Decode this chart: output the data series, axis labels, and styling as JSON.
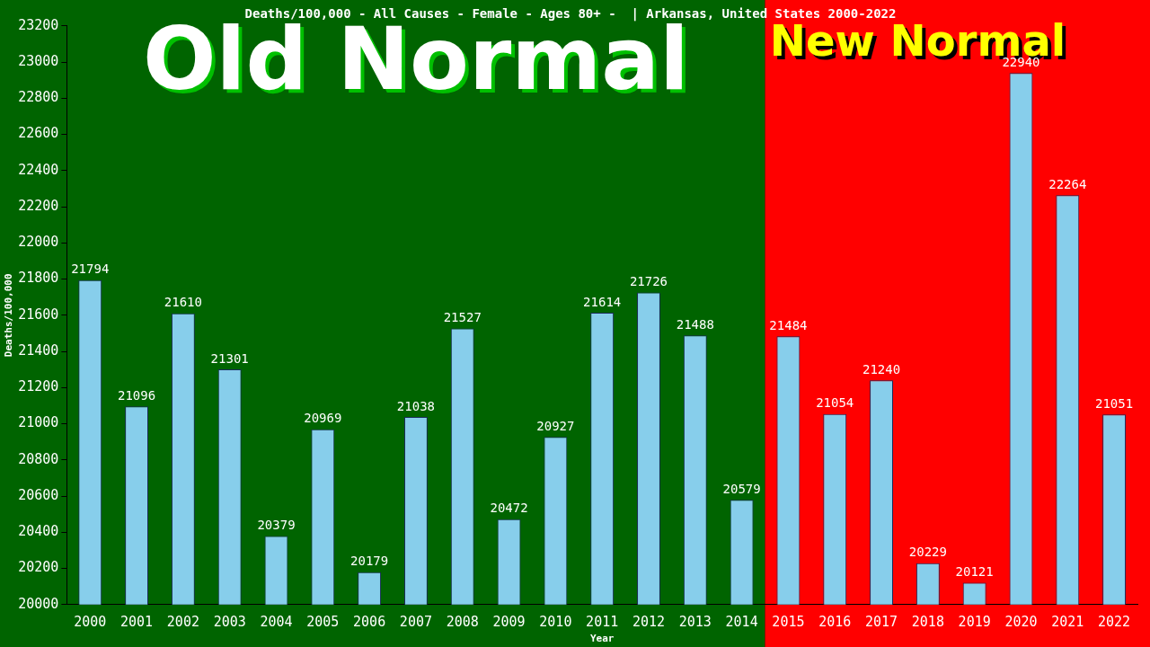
{
  "chart_data": {
    "type": "bar",
    "title": "Deaths/100,000 - All Causes - Female - Ages 80+ -  | Arkansas, United States 2000-2022",
    "xlabel": "Year",
    "ylabel": "Deaths/100,000",
    "categories": [
      "2000",
      "2001",
      "2002",
      "2003",
      "2004",
      "2005",
      "2006",
      "2007",
      "2008",
      "2009",
      "2010",
      "2011",
      "2012",
      "2013",
      "2014",
      "2015",
      "2016",
      "2017",
      "2018",
      "2019",
      "2020",
      "2021",
      "2022"
    ],
    "values": [
      21794,
      21096,
      21610,
      21301,
      20379,
      20969,
      20179,
      21038,
      21527,
      20472,
      20927,
      21614,
      21726,
      21488,
      20579,
      21484,
      21054,
      21240,
      20229,
      20121,
      22940,
      22264,
      21051
    ],
    "color": "#87ceeb",
    "ylim": [
      20000,
      23200
    ],
    "yticks": [
      20000,
      20200,
      20400,
      20600,
      20800,
      21000,
      21200,
      21400,
      21600,
      21800,
      22000,
      22200,
      22400,
      22600,
      22800,
      23000,
      23200
    ],
    "grid": false,
    "legend": false,
    "data_labels": true,
    "bands": [
      {
        "axis": "x",
        "from": "2000",
        "to": "2014",
        "label": "Old Normal",
        "color": "#006400"
      },
      {
        "axis": "x",
        "from": "2015",
        "to": "2022",
        "label": "New Normal",
        "color": "#ff0000"
      }
    ]
  }
}
